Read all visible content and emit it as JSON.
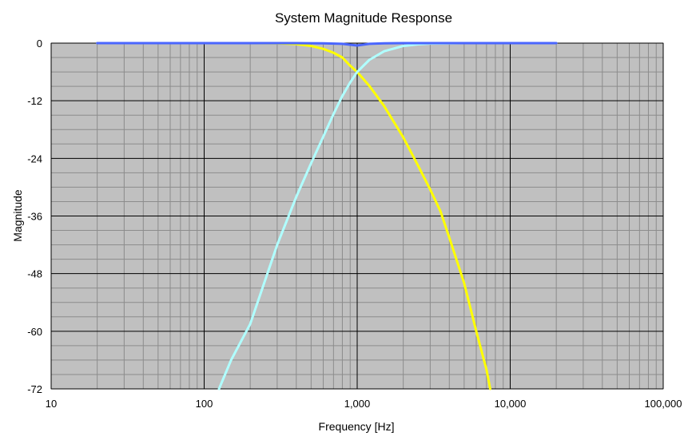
{
  "chart_data": {
    "type": "line",
    "title": "System Magnitude Response",
    "xlabel": "Frequency [Hz]",
    "ylabel": "Magnitude",
    "x_scale": "log",
    "xlim": [
      10,
      100000
    ],
    "ylim": [
      -72,
      0
    ],
    "x_ticks": [
      10,
      100,
      1000,
      10000,
      100000
    ],
    "x_tick_labels": [
      "10",
      "100",
      "1,000",
      "10,000",
      "100,000"
    ],
    "y_ticks": [
      0,
      -12,
      -24,
      -36,
      -48,
      -60,
      -72
    ],
    "y_tick_labels": [
      "0",
      "-12",
      "-24",
      "-36",
      "-48",
      "-60",
      "-72"
    ],
    "grid": true,
    "legend": "none",
    "plot_background": "#c0c0c0",
    "series": [
      {
        "color": "#ffff00",
        "x": [
          20,
          100,
          200,
          300,
          400,
          500,
          600,
          700,
          800,
          900,
          1000,
          1200,
          1500,
          2000,
          2500,
          3000,
          3500,
          4000,
          5000,
          6000,
          7000,
          7400
        ],
        "y": [
          0,
          0,
          0,
          -0.05,
          -0.2,
          -0.6,
          -1.2,
          -2.0,
          -3.0,
          -4.7,
          -6.0,
          -8.9,
          -13.1,
          -19.6,
          -25.5,
          -30.5,
          -35.0,
          -40.5,
          -50.0,
          -60.0,
          -68.0,
          -72.0
        ]
      },
      {
        "color": "#b0ffff",
        "x": [
          125,
          150,
          200,
          300,
          400,
          500,
          600,
          700,
          800,
          900,
          1000,
          1200,
          1500,
          2000,
          2500,
          3000,
          5000,
          10000,
          20000
        ],
        "y": [
          -72.0,
          -66.0,
          -58.5,
          -42.0,
          -32.0,
          -25.0,
          -19.5,
          -14.8,
          -11.0,
          -8.2,
          -6.0,
          -3.5,
          -1.7,
          -0.6,
          -0.25,
          -0.1,
          0,
          0,
          0
        ]
      },
      {
        "color": "#4a66ff",
        "x": [
          20,
          400,
          600,
          800,
          1000,
          1200,
          1500,
          2000,
          20000
        ],
        "y": [
          0,
          0,
          -0.05,
          -0.15,
          -0.5,
          -0.15,
          -0.05,
          0,
          0
        ]
      }
    ]
  }
}
